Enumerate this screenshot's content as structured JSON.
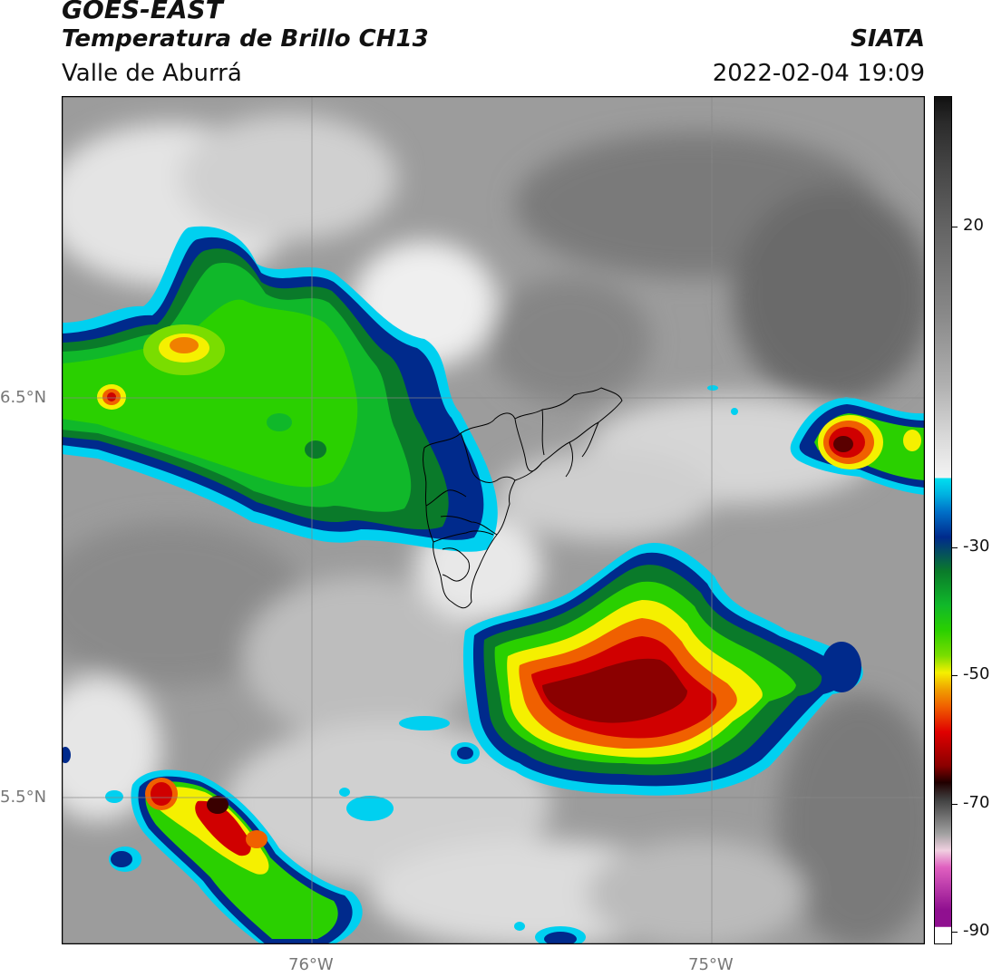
{
  "header": {
    "title": "GOES-EAST",
    "subtitle": "Temperatura de Brillo CH13",
    "region": "Valle de Aburrá",
    "brand": "SIATA",
    "datetime": "2022-02-04 19:09"
  },
  "map": {
    "lat_labels": [
      "6.5°N",
      "5.5°N"
    ],
    "lon_labels": [
      "76°W",
      "75°W"
    ]
  },
  "colorbar": {
    "labels": [
      "20",
      "-30",
      "-50",
      "-70",
      "-90"
    ],
    "values": [
      20,
      -30,
      -50,
      -70,
      -90
    ],
    "min": -93,
    "max": 40,
    "units": "°C"
  },
  "colors": {
    "cold_top_core": "#8b0000",
    "red": "#e00000",
    "yellow": "#f5f000",
    "green": "#00c800",
    "dark_blue": "#002a8c",
    "cyan": "#00d0f0",
    "cloud_gray": "#9a9a9a"
  }
}
